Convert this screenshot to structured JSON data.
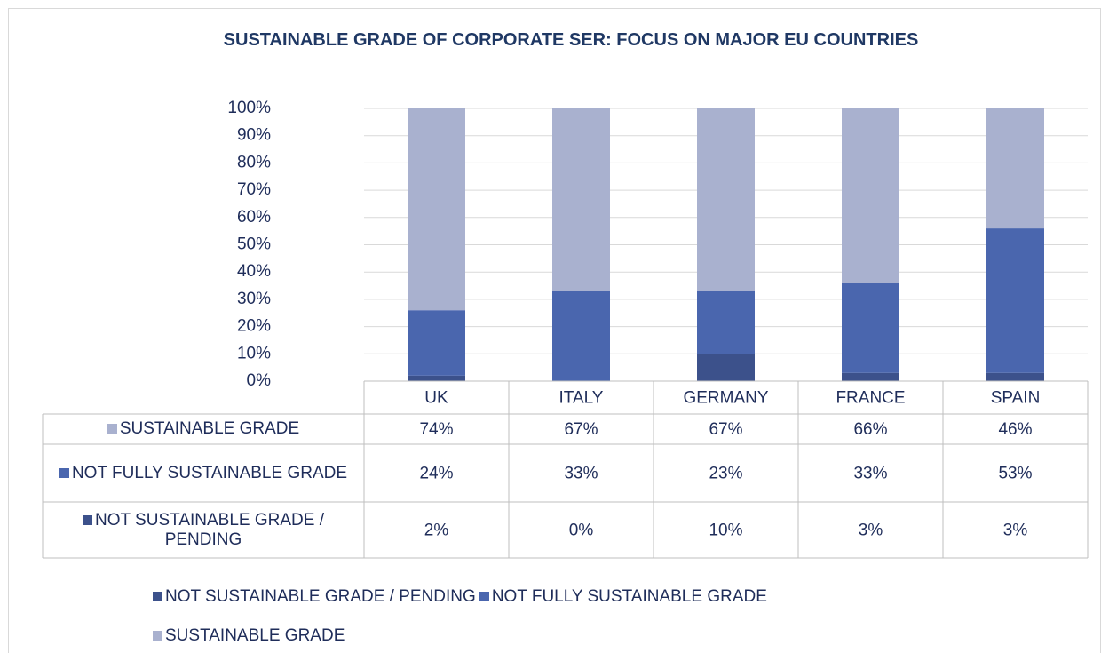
{
  "chart_data": {
    "type": "bar",
    "stacked": true,
    "title": "SUSTAINABLE GRADE OF CORPORATE SER: FOCUS ON MAJOR EU COUNTRIES",
    "categories": [
      "UK",
      "ITALY",
      "GERMANY",
      "FRANCE",
      "SPAIN"
    ],
    "series": [
      {
        "name": "NOT SUSTAINABLE GRADE / PENDING",
        "color": "#3c518b",
        "values": [
          2,
          0,
          10,
          3,
          3
        ],
        "value_labels": [
          "2%",
          "0%",
          "10%",
          "3%",
          "3%"
        ]
      },
      {
        "name": "NOT FULLY SUSTAINABLE GRADE",
        "color": "#4a66ae",
        "values": [
          24,
          33,
          23,
          33,
          53
        ],
        "value_labels": [
          "24%",
          "33%",
          "23%",
          "33%",
          "53%"
        ]
      },
      {
        "name": "SUSTAINABLE GRADE",
        "color": "#a9b1cf",
        "values": [
          74,
          67,
          67,
          66,
          46
        ],
        "value_labels": [
          "74%",
          "67%",
          "67%",
          "66%",
          "46%"
        ]
      }
    ],
    "ylim": [
      0,
      100
    ],
    "yticks": [
      {
        "value": 0,
        "label": "0%"
      },
      {
        "value": 10,
        "label": "10%"
      },
      {
        "value": 20,
        "label": "20%"
      },
      {
        "value": 30,
        "label": "30%"
      },
      {
        "value": 40,
        "label": "40%"
      },
      {
        "value": 50,
        "label": "50%"
      },
      {
        "value": 60,
        "label": "60%"
      },
      {
        "value": 70,
        "label": "70%"
      },
      {
        "value": 80,
        "label": "80%"
      },
      {
        "value": 90,
        "label": "90%"
      },
      {
        "value": 100,
        "label": "100%"
      }
    ],
    "grid": true,
    "legend": "bottom",
    "data_table": true
  }
}
